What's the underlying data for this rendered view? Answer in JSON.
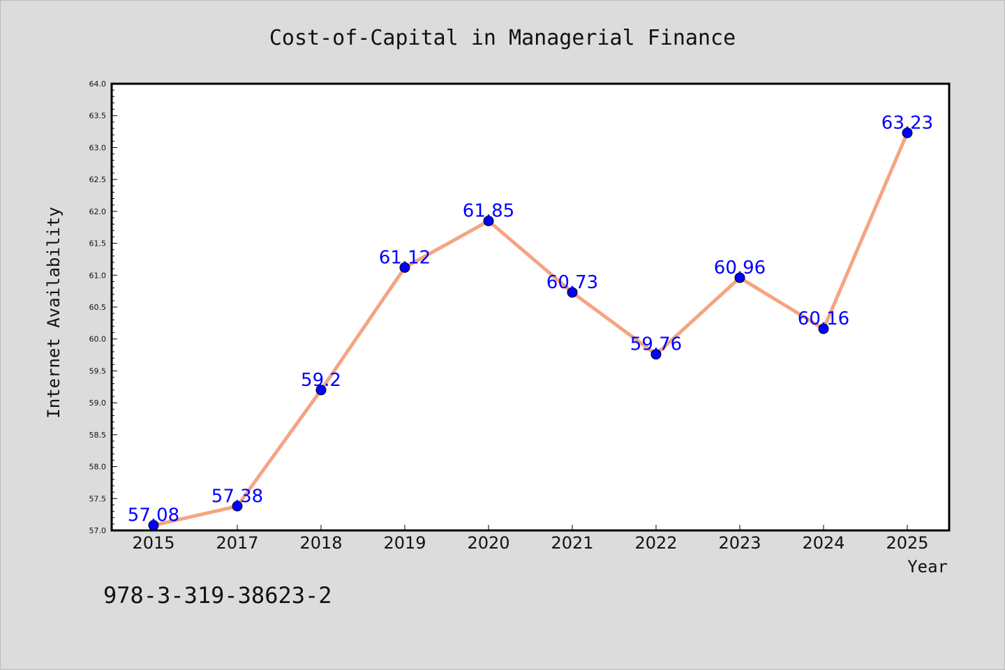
{
  "chart_data": {
    "type": "line",
    "title": "Cost-of-Capital in Managerial Finance",
    "xlabel": "Year",
    "ylabel": "Internet Availability",
    "categories": [
      "2015",
      "2017",
      "2018",
      "2019",
      "2020",
      "2021",
      "2022",
      "2023",
      "2024",
      "2025"
    ],
    "series": [
      {
        "values": [
          57.08,
          57.38,
          59.2,
          61.12,
          61.85,
          60.73,
          59.76,
          60.96,
          60.16,
          63.23
        ],
        "labels": [
          "57.08",
          "57.38",
          "59.2",
          "61.12",
          "61.85",
          "60.73",
          "59.76",
          "60.96",
          "60.16",
          "63.23"
        ],
        "line_color": "#f4a582",
        "marker_color": "#0000ff"
      }
    ],
    "ylim": [
      57.0,
      64.0
    ],
    "yticks": [
      "57.0",
      "57.5",
      "58.0",
      "58.5",
      "59.0",
      "59.5",
      "60.0",
      "60.5",
      "61.0",
      "61.5",
      "62.0",
      "62.5",
      "63.0",
      "63.5",
      "64.0"
    ],
    "grid": false,
    "legend": "none"
  },
  "footer": {
    "isbn": "978-3-319-38623-2"
  },
  "colors": {
    "background": "#dcdcdc",
    "plot_area": "#ffffff",
    "label": "#0000ff"
  }
}
